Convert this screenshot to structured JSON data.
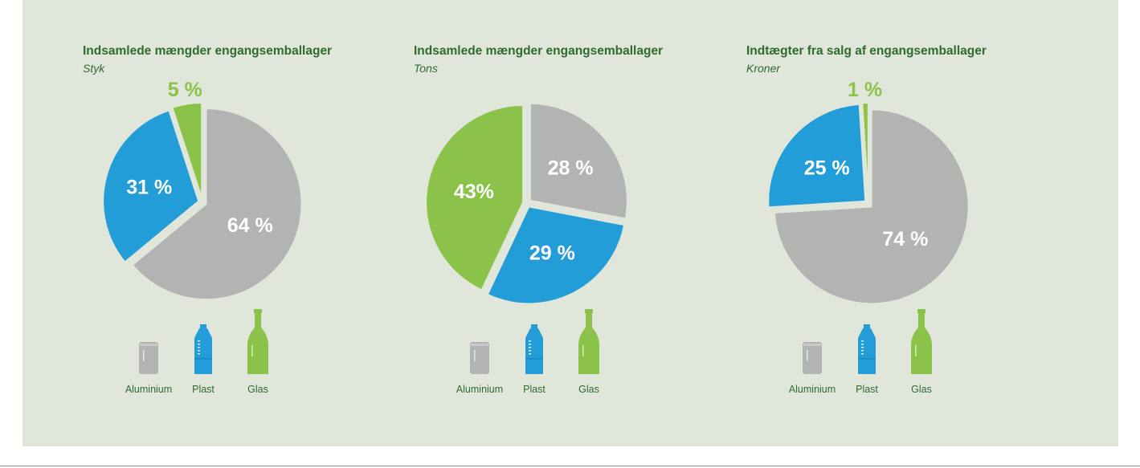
{
  "colors": {
    "aluminium": "#b3b3b3",
    "plast": "#239dd8",
    "glas": "#8bc34a",
    "outside_label": "#8bc34a",
    "inside_label": "#ffffff",
    "separator": "#e1e6db"
  },
  "legend": {
    "items": [
      {
        "key": "aluminium",
        "label": "Aluminium",
        "icon": "can-icon"
      },
      {
        "key": "plast",
        "label": "Plast",
        "icon": "plastic-bottle-icon"
      },
      {
        "key": "glas",
        "label": "Glas",
        "icon": "glass-bottle-icon"
      }
    ]
  },
  "chart_data": [
    {
      "type": "pie",
      "title": "Indsamlede mængder engangsemballager",
      "subtitle": "Styk",
      "slices": [
        {
          "name": "Aluminium",
          "value": 64,
          "label": "64 %"
        },
        {
          "name": "Plast",
          "value": 31,
          "label": "31 %"
        },
        {
          "name": "Glas",
          "value": 5,
          "label": "5 %"
        }
      ]
    },
    {
      "type": "pie",
      "title": "Indsamlede mængder engangsemballager",
      "subtitle": "Tons",
      "slices": [
        {
          "name": "Aluminium",
          "value": 28,
          "label": "28 %"
        },
        {
          "name": "Plast",
          "value": 29,
          "label": "29 %"
        },
        {
          "name": "Glas",
          "value": 43,
          "label": "43%"
        }
      ]
    },
    {
      "type": "pie",
      "title": "Indtægter fra salg af engangsemballager",
      "subtitle": "Kroner",
      "slices": [
        {
          "name": "Aluminium",
          "value": 74,
          "label": "74 %"
        },
        {
          "name": "Plast",
          "value": 25,
          "label": "25 %"
        },
        {
          "name": "Glas",
          "value": 1,
          "label": "1 %"
        }
      ]
    }
  ]
}
